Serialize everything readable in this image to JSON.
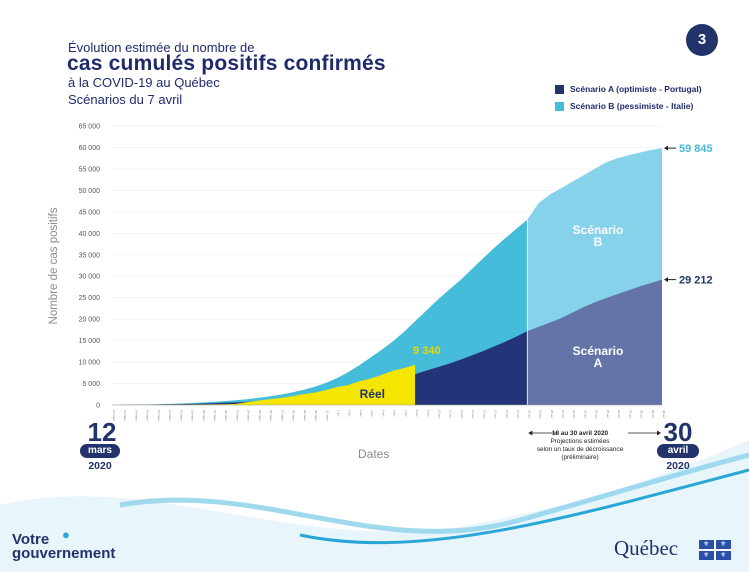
{
  "page_number": "3",
  "title": {
    "line1": "Évolution estimée du nombre de",
    "line2": "cas cumulés positifs confirmés",
    "line3": "à la COVID-19 au Québec",
    "line4": "Scénarios du 7 avril"
  },
  "legend": {
    "a_label": "Scénario A (optimiste - Portugal)",
    "b_label": "Scénario B (pessimiste - Italie)"
  },
  "colors": {
    "navy": "#22336b",
    "scenario_a_dark": "#233478",
    "scenario_a_light": "#6474a8",
    "scenario_b_dark": "#45bcd9",
    "scenario_b_light": "#86d2ea",
    "reel": "#f4e600",
    "value_b": "#45b9d8"
  },
  "axis": {
    "ylabel": "Nombre de cas positifs",
    "xlabel": "Dates"
  },
  "start_date": {
    "day": "12",
    "month": "mars",
    "year": "2020"
  },
  "end_date": {
    "day": "30",
    "month": "avril",
    "year": "2020"
  },
  "projection": {
    "line1": "18 au 30 avril 2020",
    "line2": "Projections estimées",
    "line3": "selon un taux de décroissance",
    "line4": "(préliminaire)"
  },
  "chart_data": {
    "type": "area",
    "title": "Évolution estimée du nombre de cas cumulés positifs confirmés à la COVID-19 au Québec",
    "xlabel": "Dates",
    "ylabel": "Nombre de cas positifs",
    "ylim": [
      0,
      65000
    ],
    "yticks": [
      "0",
      "5 000",
      "10 000",
      "15 000",
      "20 000",
      "25 000",
      "30 000",
      "35 000",
      "40 000",
      "45 000",
      "50 000",
      "55 000",
      "60 000",
      "65 000"
    ],
    "ytick_values": [
      0,
      5000,
      10000,
      15000,
      20000,
      25000,
      30000,
      35000,
      40000,
      45000,
      50000,
      55000,
      60000,
      65000
    ],
    "x_dates": [
      "12 mars",
      "13 mars",
      "14 mars",
      "15 mars",
      "16 mars",
      "17 mars",
      "18 mars",
      "19 mars",
      "20 mars",
      "21 mars",
      "22 mars",
      "23 mars",
      "24 mars",
      "25 mars",
      "26 mars",
      "27 mars",
      "28 mars",
      "29 mars",
      "30 mars",
      "31 mars",
      "1 avr",
      "2 avr",
      "3 avr",
      "4 avr",
      "5 avr",
      "6 avr",
      "7 avr",
      "8 avr",
      "9 avr",
      "10 avr",
      "11 avr",
      "12 avr",
      "13 avr",
      "14 avr",
      "15 avr",
      "16 avr",
      "17 avr",
      "18 avr",
      "19 avr",
      "20 avr",
      "21 avr",
      "22 avr",
      "23 avr",
      "24 avr",
      "25 avr",
      "26 avr",
      "27 avr",
      "28 avr",
      "29 avr",
      "30 avr"
    ],
    "series": [
      {
        "name": "Scénario B (pessimiste - Italie)",
        "values": [
          0,
          50,
          80,
          130,
          180,
          260,
          350,
          450,
          580,
          730,
          900,
          1100,
          1350,
          1650,
          2000,
          2400,
          2900,
          3500,
          4200,
          5100,
          6200,
          7600,
          9200,
          11000,
          12800,
          14800,
          17000,
          19500,
          22000,
          24500,
          26800,
          29000,
          31500,
          34000,
          36500,
          38800,
          41000,
          43200,
          47000,
          49000,
          50500,
          52000,
          53500,
          55000,
          56500,
          57500,
          58200,
          58800,
          59400,
          59845
        ]
      },
      {
        "name": "Scénario A (optimiste - Portugal)",
        "values": [
          0,
          30,
          50,
          80,
          120,
          160,
          210,
          270,
          340,
          420,
          510,
          620,
          740,
          880,
          1030,
          1200,
          1400,
          1650,
          1950,
          2300,
          2750,
          3200,
          3700,
          4300,
          4900,
          5600,
          6400,
          7200,
          8000,
          8800,
          9600,
          10500,
          11500,
          12500,
          13600,
          14700,
          15900,
          17200,
          18200,
          19200,
          20200,
          21500,
          22800,
          23900,
          24900,
          25800,
          26700,
          27600,
          28400,
          29212
        ]
      },
      {
        "name": "Réel",
        "values": [
          13,
          17,
          21,
          24,
          39,
          50,
          74,
          94,
          121,
          139,
          181,
          219,
          628,
          1013,
          1339,
          1629,
          2021,
          2498,
          2840,
          3430,
          4162,
          4611,
          5518,
          6101,
          6997,
          7944,
          8580,
          9340
        ]
      }
    ],
    "annotations": [
      {
        "label": "9 340",
        "series": "Réel",
        "value": 9340
      },
      {
        "label": "59 845",
        "series": "Scénario B (pessimiste - Italie)",
        "value": 59845
      },
      {
        "label": "29 212",
        "series": "Scénario A (optimiste - Portugal)",
        "value": 29212
      }
    ],
    "region_labels": {
      "b": "Scénario\nB",
      "a": "Scénario\nA",
      "reel": "Réel"
    },
    "projection_start_index": 37
  },
  "footer": {
    "votre_line1": "Votre",
    "votre_line2": "gouvernement",
    "quebec": "Québec"
  }
}
